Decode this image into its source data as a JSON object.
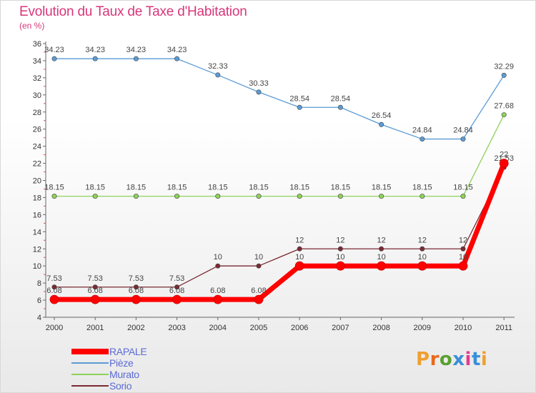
{
  "header": {
    "title": "Evolution du Taux de Taxe d'Habitation",
    "unit": "(en %)"
  },
  "logo": {
    "text": "Proxiti",
    "colors": [
      "#f0a030",
      "#e86a1c",
      "#5aa030",
      "#3a8fd8",
      "#e23c8c",
      "#3a8fd8",
      "#f0a030"
    ]
  },
  "chart_data": {
    "type": "line",
    "title": "Evolution du Taux de Taxe d'Habitation",
    "ylabel": "(en %)",
    "xlabel": "",
    "x": [
      "2000",
      "2001",
      "2002",
      "2003",
      "2004",
      "2005",
      "2006",
      "2007",
      "2008",
      "2009",
      "2010",
      "2011"
    ],
    "ylim": [
      4,
      36
    ],
    "yticks": [
      4,
      6,
      8,
      10,
      12,
      14,
      16,
      18,
      20,
      22,
      24,
      26,
      28,
      30,
      32,
      34,
      36
    ],
    "grid": false,
    "legend_position": "bottom-left",
    "series": [
      {
        "name": "Pièze",
        "color": "#5b9bd5",
        "values": [
          34.23,
          34.23,
          34.23,
          34.23,
          32.33,
          30.33,
          28.54,
          28.54,
          26.54,
          24.84,
          24.84,
          32.29
        ],
        "labels": [
          "34.23",
          "34.23",
          "34.23",
          "34.23",
          "32.33",
          "30.33",
          "28.54",
          "28.54",
          "26.54",
          "24.84",
          "24.84",
          "32.29"
        ]
      },
      {
        "name": "Murato",
        "color": "#8fd15b",
        "values": [
          18.15,
          18.15,
          18.15,
          18.15,
          18.15,
          18.15,
          18.15,
          18.15,
          18.15,
          18.15,
          18.15,
          27.68
        ],
        "labels": [
          "18.15",
          "18.15",
          "18.15",
          "18.15",
          "18.15",
          "18.15",
          "18.15",
          "18.15",
          "18.15",
          "18.15",
          "18.15",
          "27.68"
        ]
      },
      {
        "name": "Sorio",
        "color": "#7a2a32",
        "values": [
          7.53,
          7.53,
          7.53,
          7.53,
          10,
          10,
          12,
          12,
          12,
          12,
          12,
          21.53
        ],
        "labels": [
          "7.53",
          "7.53",
          "7.53",
          "7.53",
          "10",
          "10",
          "12",
          "12",
          "12",
          "12",
          "12",
          "21.53"
        ]
      },
      {
        "name": "RAPALE",
        "color": "#ff0000",
        "values": [
          6.08,
          6.08,
          6.08,
          6.08,
          6.08,
          6.08,
          10,
          10,
          10,
          10,
          10,
          22
        ],
        "labels": [
          "6.08",
          "6.08",
          "6.08",
          "6.08",
          "6.08",
          "6.08",
          "10",
          "10",
          "10",
          "10",
          "10",
          "22"
        ]
      }
    ],
    "legend": [
      "RAPALE",
      "Pièze",
      "Murato",
      "Sorio"
    ]
  }
}
